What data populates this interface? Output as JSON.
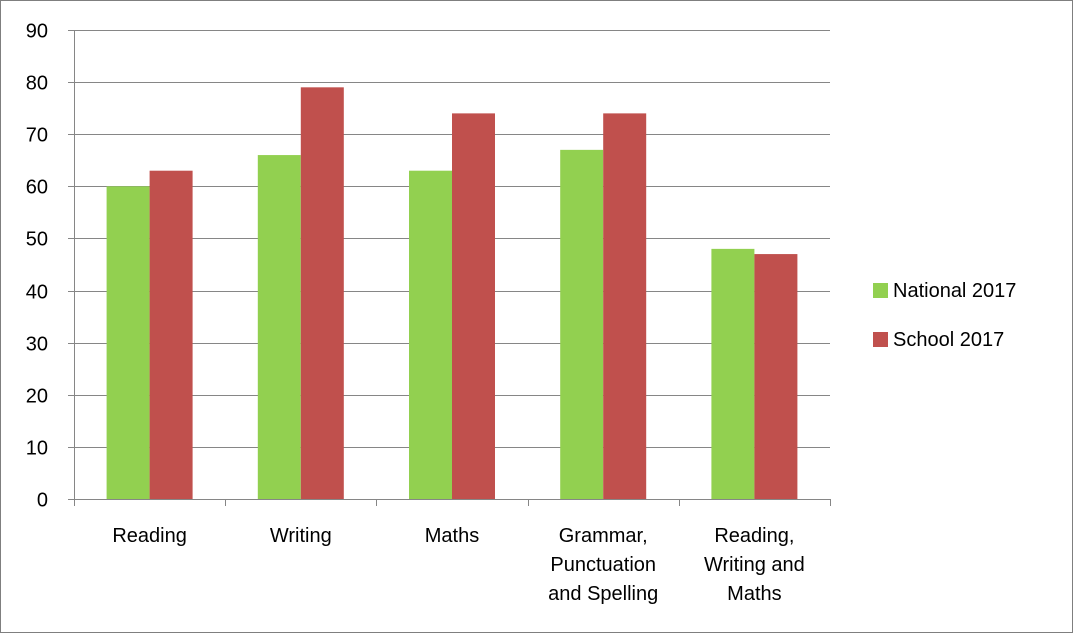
{
  "chart_data": {
    "type": "bar",
    "title": "",
    "xlabel": "",
    "ylabel": "",
    "categories": [
      [
        "Reading"
      ],
      [
        "Writing"
      ],
      [
        "Maths"
      ],
      [
        "Grammar,",
        "Punctuation",
        "and Spelling"
      ],
      [
        "Reading,",
        "Writing and",
        "Maths"
      ]
    ],
    "series": [
      {
        "name": "National 2017",
        "color": "#92d050",
        "values": [
          60,
          66,
          63,
          67,
          48
        ]
      },
      {
        "name": "School 2017",
        "color": "#c0504d",
        "values": [
          63,
          79,
          74,
          74,
          47
        ]
      }
    ],
    "ylim": [
      0,
      90
    ],
    "yticks": [
      0,
      10,
      20,
      30,
      40,
      50,
      60,
      70,
      80,
      90
    ],
    "grid": true,
    "legend_position": "right"
  }
}
